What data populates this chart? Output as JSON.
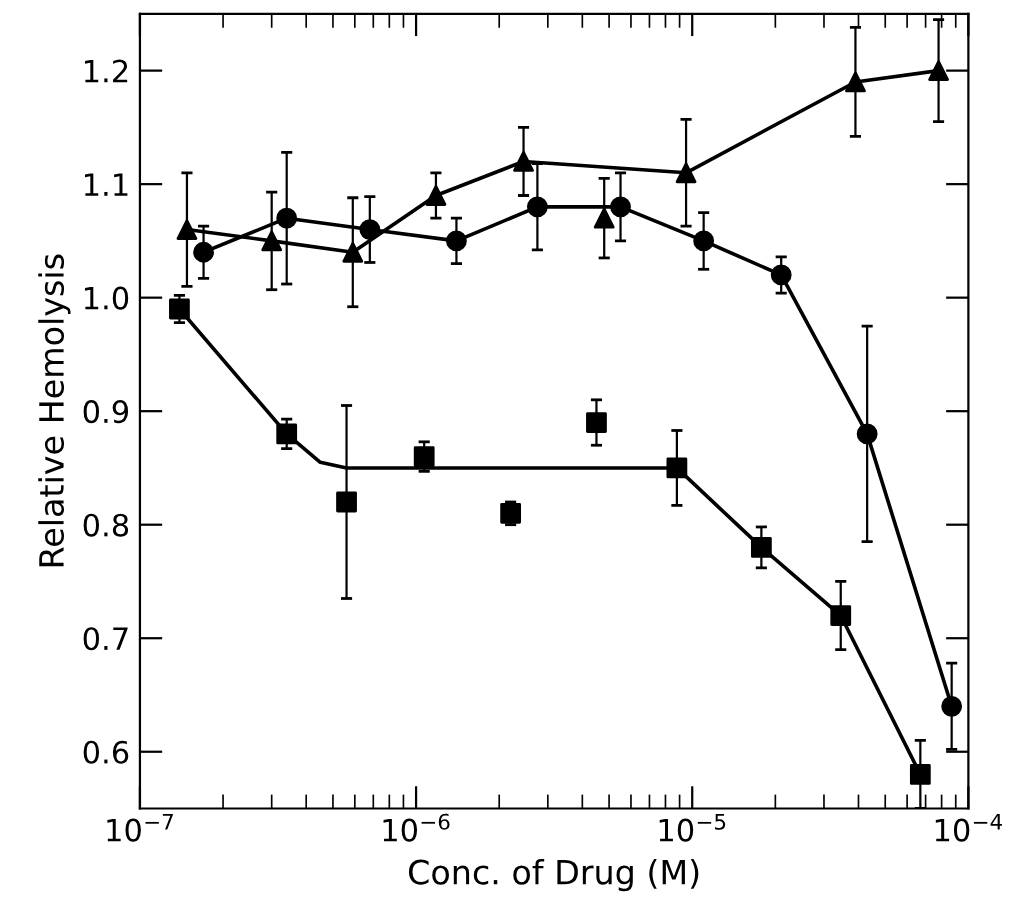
{
  "chart_data": {
    "type": "scatter",
    "xlabel": "Conc. of Drug (M)",
    "ylabel": "Relative Hemolysis",
    "log": "x",
    "xlim": [
      1e-07,
      0.0001
    ],
    "xticks": [
      {
        "value": 1e-07,
        "label": "10$^{−7}$"
      },
      {
        "value": 1e-06,
        "label": "10$^{−6}$"
      },
      {
        "value": 1e-05,
        "label": "10$^{−5}$"
      },
      {
        "value": 0.0001,
        "label": "10$^{−4}$"
      }
    ],
    "ylim": [
      0.55,
      1.25
    ],
    "yticks": [
      {
        "value": 0.6,
        "label": "0.6"
      },
      {
        "value": 0.7,
        "label": "0.7"
      },
      {
        "value": 0.8,
        "label": "0.8"
      },
      {
        "value": 0.9,
        "label": "0.9"
      },
      {
        "value": 1.0,
        "label": "1.0"
      },
      {
        "value": 1.1,
        "label": "1.1"
      },
      {
        "value": 1.2,
        "label": "1.2"
      }
    ],
    "grid": false,
    "series": [
      {
        "marker": "triangle",
        "color": "#000000",
        "x": [
          1.48e-07,
          3e-07,
          5.9e-07,
          1.18e-06,
          2.45e-06,
          4.8e-06,
          9.5e-06,
          3.9e-05,
          7.8e-05
        ],
        "values": [
          1.06,
          1.05,
          1.04,
          1.09,
          1.12,
          1.07,
          1.11,
          1.19,
          1.2
        ],
        "errors": [
          0.05,
          0.043,
          0.048,
          0.02,
          0.03,
          0.035,
          0.047,
          0.048,
          0.045
        ]
      },
      {
        "type": "line",
        "marker": "none",
        "color": "#000000",
        "x": [
          1.48e-07,
          3e-07,
          5.9e-07,
          1.18e-06,
          2.45e-06,
          9.5e-06,
          3.9e-05,
          7.8e-05
        ],
        "values": [
          1.06,
          1.05,
          1.04,
          1.09,
          1.12,
          1.11,
          1.19,
          1.2
        ]
      },
      {
        "type": "line",
        "marker": "circle",
        "color": "#000000",
        "x": [
          1.7e-07,
          3.4e-07,
          6.8e-07,
          1.4e-06,
          2.75e-06,
          5.5e-06,
          1.1e-05,
          2.1e-05,
          4.3e-05,
          8.7e-05
        ],
        "values": [
          1.04,
          1.07,
          1.06,
          1.05,
          1.08,
          1.08,
          1.05,
          1.02,
          0.88,
          0.64
        ],
        "errors": [
          0.023,
          0.058,
          0.029,
          0.02,
          0.038,
          0.03,
          0.025,
          0.016,
          0.095,
          0.038
        ]
      },
      {
        "marker": "square",
        "color": "#000000",
        "x": [
          1.39e-07,
          3.4e-07,
          5.6e-07,
          1.07e-06,
          2.2e-06,
          4.5e-06,
          8.8e-06,
          1.78e-05,
          3.45e-05,
          6.7e-05
        ],
        "values": [
          0.99,
          0.88,
          0.82,
          0.86,
          0.81,
          0.89,
          0.85,
          0.78,
          0.72,
          0.58
        ],
        "errors": [
          0.012,
          0.013,
          0.085,
          0.013,
          0.01,
          0.02,
          0.033,
          0.018,
          0.03,
          0.03
        ]
      },
      {
        "type": "line",
        "marker": "none",
        "color": "#000000",
        "x": [
          1.39e-07,
          3.4e-07,
          4.5e-07,
          5.6e-07,
          8.8e-06,
          1.78e-05,
          3.45e-05,
          6.7e-05
        ],
        "values": [
          0.99,
          0.88,
          0.855,
          0.85,
          0.85,
          0.78,
          0.72,
          0.58
        ]
      }
    ]
  }
}
